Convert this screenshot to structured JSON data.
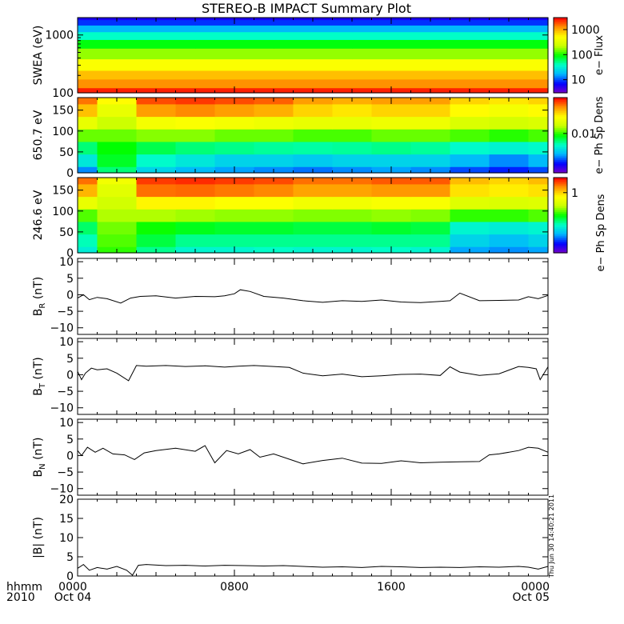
{
  "title": "STEREO-B IMPACT Summary Plot",
  "stamp": "Thu Jun 30 14:40:21 2011",
  "time_axis": {
    "prefix_line1": "hhmm",
    "prefix_line2": "2010",
    "ticks": [
      {
        "t": 0,
        "line1": "0000",
        "line2": "Oct 04"
      },
      {
        "t": 8,
        "line1": "0800",
        "line2": ""
      },
      {
        "t": 16,
        "line1": "1600",
        "line2": ""
      },
      {
        "t": 24,
        "line1": "0000",
        "line2": "Oct 05"
      }
    ]
  },
  "colors": {
    "spectrogram_scale": [
      "#7a00c8",
      "#0000ff",
      "#00b4ff",
      "#00ffc8",
      "#00ff00",
      "#c8ff00",
      "#ffff00",
      "#ff9600",
      "#ff0000"
    ],
    "line": "#000000",
    "axes": "#000000"
  },
  "chart_data": [
    {
      "type": "heatmap",
      "name": "swea",
      "ylabel": "SWEA (eV)",
      "yscale": "log",
      "ylim": [
        100,
        2000
      ],
      "ytick_labels": [
        "100",
        "1000"
      ],
      "ytick_values": [
        100,
        1000
      ],
      "colorbar_label": "e− Flux",
      "colorbar_scale": "log",
      "colorbar_ticks": [
        "10",
        "100",
        "1000"
      ],
      "colorbar_tick_values": [
        10,
        100,
        1000
      ],
      "colorbar_range": [
        3,
        3000
      ],
      "xlim": [
        0,
        24
      ],
      "x_hours": [
        0,
        4,
        8,
        12,
        16,
        20,
        24
      ],
      "y_values": [
        100,
        150,
        200,
        300,
        500,
        700,
        1000,
        1300,
        1700,
        2000
      ],
      "z_values": [
        [
          2500,
          2500,
          2500,
          2500,
          2500,
          2500,
          2500
        ],
        [
          1300,
          1300,
          1300,
          1300,
          1300,
          1300,
          1300
        ],
        [
          900,
          900,
          900,
          900,
          900,
          900,
          900
        ],
        [
          500,
          500,
          500,
          500,
          500,
          500,
          500
        ],
        [
          180,
          180,
          180,
          180,
          180,
          180,
          180
        ],
        [
          90,
          90,
          90,
          90,
          90,
          90,
          90
        ],
        [
          40,
          40,
          40,
          40,
          40,
          40,
          40
        ],
        [
          18,
          18,
          18,
          18,
          18,
          18,
          18
        ],
        [
          9,
          9,
          9,
          9,
          9,
          9,
          9
        ],
        [
          6,
          6,
          6,
          6,
          6,
          6,
          6
        ]
      ]
    },
    {
      "type": "heatmap",
      "name": "pad650",
      "ylabel": "650.7 eV",
      "yscale": "linear",
      "ylim": [
        0,
        180
      ],
      "ytick_labels": [
        "0",
        "50",
        "100",
        "150"
      ],
      "ytick_values": [
        0,
        50,
        100,
        150
      ],
      "colorbar_label": "e− Ph Sp Dens",
      "colorbar_scale": "log",
      "colorbar_ticks": [
        "0.01"
      ],
      "colorbar_tick_values": [
        0.01
      ],
      "colorbar_range": [
        0.003,
        0.03
      ],
      "xlim": [
        0,
        24
      ],
      "x_hours": [
        0,
        2,
        4,
        6,
        8,
        10,
        12,
        14,
        16,
        18,
        20,
        22,
        24
      ],
      "y_values": [
        0,
        30,
        60,
        90,
        120,
        150,
        180
      ],
      "z_values": [
        [
          0.005,
          0.008,
          0.006,
          0.0055,
          0.0052,
          0.005,
          0.0048,
          0.005,
          0.0052,
          0.005,
          0.0045,
          0.0042,
          0.0045
        ],
        [
          0.0065,
          0.009,
          0.007,
          0.0065,
          0.006,
          0.006,
          0.0058,
          0.006,
          0.006,
          0.006,
          0.0055,
          0.005,
          0.0055
        ],
        [
          0.008,
          0.0095,
          0.0085,
          0.008,
          0.0078,
          0.0076,
          0.0075,
          0.0076,
          0.0078,
          0.0076,
          0.007,
          0.0068,
          0.007
        ],
        [
          0.011,
          0.011,
          0.0115,
          0.0115,
          0.011,
          0.011,
          0.0105,
          0.0105,
          0.011,
          0.011,
          0.0105,
          0.01,
          0.0105
        ],
        [
          0.015,
          0.013,
          0.016,
          0.0165,
          0.016,
          0.0155,
          0.015,
          0.015,
          0.0155,
          0.0155,
          0.014,
          0.0135,
          0.014
        ],
        [
          0.02,
          0.015,
          0.022,
          0.023,
          0.022,
          0.021,
          0.019,
          0.018,
          0.019,
          0.019,
          0.017,
          0.016,
          0.017
        ],
        [
          0.024,
          0.017,
          0.026,
          0.027,
          0.026,
          0.025,
          0.022,
          0.021,
          0.022,
          0.022,
          0.019,
          0.018,
          0.019
        ]
      ]
    },
    {
      "type": "heatmap",
      "name": "pad246",
      "ylabel": "246.6 eV",
      "yscale": "linear",
      "ylim": [
        0,
        180
      ],
      "ytick_labels": [
        "0",
        "50",
        "100",
        "150"
      ],
      "ytick_values": [
        0,
        50,
        100,
        150
      ],
      "colorbar_label": "e− Ph Sp Dens",
      "colorbar_scale": "log",
      "colorbar_ticks": [
        "1"
      ],
      "colorbar_tick_values": [
        1
      ],
      "colorbar_range": [
        0.35,
        1.3
      ],
      "xlim": [
        0,
        24
      ],
      "x_hours": [
        0,
        2,
        4,
        6,
        8,
        10,
        12,
        14,
        16,
        18,
        20,
        22,
        24
      ],
      "y_values": [
        0,
        30,
        60,
        90,
        120,
        150,
        180
      ],
      "z_values": [
        [
          0.55,
          0.7,
          0.6,
          0.56,
          0.56,
          0.57,
          0.56,
          0.56,
          0.57,
          0.56,
          0.48,
          0.47,
          0.48
        ],
        [
          0.58,
          0.72,
          0.64,
          0.6,
          0.6,
          0.6,
          0.6,
          0.6,
          0.6,
          0.6,
          0.52,
          0.5,
          0.52
        ],
        [
          0.62,
          0.74,
          0.68,
          0.66,
          0.65,
          0.65,
          0.64,
          0.64,
          0.65,
          0.64,
          0.56,
          0.55,
          0.56
        ],
        [
          0.72,
          0.78,
          0.78,
          0.77,
          0.76,
          0.76,
          0.75,
          0.75,
          0.76,
          0.75,
          0.7,
          0.7,
          0.72
        ],
        [
          0.88,
          0.82,
          0.95,
          0.95,
          0.93,
          0.93,
          0.9,
          0.9,
          0.92,
          0.92,
          0.85,
          0.84,
          0.85
        ],
        [
          1.05,
          0.86,
          1.15,
          1.16,
          1.14,
          1.12,
          1.08,
          1.08,
          1.1,
          1.1,
          0.98,
          0.96,
          0.98
        ],
        [
          1.15,
          0.9,
          1.22,
          1.24,
          1.22,
          1.2,
          1.15,
          1.15,
          1.18,
          1.18,
          1.04,
          1.0,
          1.04
        ]
      ]
    },
    {
      "type": "line",
      "name": "br",
      "ylabel": "B",
      "ylabel_sub": "R",
      "yunit": " (nT)",
      "ylim": [
        -12,
        11
      ],
      "ytick_values": [
        -10,
        -5,
        0,
        5,
        10
      ],
      "ytick_labels": [
        "−10",
        "−5",
        "0",
        "5",
        "10"
      ],
      "xlim": [
        0,
        24
      ],
      "x": [
        0,
        0.3,
        0.6,
        1.0,
        1.5,
        2.2,
        2.7,
        3.2,
        4.0,
        5.0,
        6.0,
        7.0,
        7.5,
        8.0,
        8.3,
        8.8,
        9.5,
        10.5,
        11.5,
        12.5,
        13.5,
        14.5,
        15.5,
        16.5,
        17.5,
        18.5,
        19.0,
        19.5,
        20.5,
        21.5,
        22.5,
        23.0,
        23.5,
        24
      ],
      "y": [
        -1.0,
        0,
        -1.5,
        -0.8,
        -1.2,
        -2.5,
        -1.0,
        -0.5,
        -0.3,
        -1.0,
        -0.5,
        -0.6,
        -0.3,
        0.3,
        1.5,
        1.0,
        -0.5,
        -1.0,
        -1.8,
        -2.3,
        -1.8,
        -2.0,
        -1.6,
        -2.2,
        -2.4,
        -2.0,
        -1.8,
        0.5,
        -1.8,
        -1.7,
        -1.6,
        -0.6,
        -1.2,
        -0.2
      ]
    },
    {
      "type": "line",
      "name": "bt",
      "ylabel": "B",
      "ylabel_sub": "T",
      "yunit": " (nT)",
      "ylim": [
        -12,
        11
      ],
      "ytick_values": [
        -10,
        -5,
        0,
        5,
        10
      ],
      "ytick_labels": [
        "−10",
        "−5",
        "0",
        "5",
        "10"
      ],
      "xlim": [
        0,
        24
      ],
      "x": [
        0,
        0.2,
        0.4,
        0.7,
        1.0,
        1.5,
        2.0,
        2.6,
        3.0,
        3.5,
        4.5,
        5.5,
        6.5,
        7.5,
        8.2,
        9.0,
        10.0,
        10.8,
        11.5,
        12.5,
        13.5,
        14.5,
        15.5,
        16.5,
        17.5,
        18.5,
        19.0,
        19.5,
        20.5,
        21.5,
        22.5,
        23.0,
        23.4,
        23.6,
        24
      ],
      "y": [
        1.0,
        -1.5,
        0.5,
        2.0,
        1.5,
        1.8,
        0.5,
        -1.8,
        2.8,
        2.6,
        2.8,
        2.5,
        2.7,
        2.3,
        2.6,
        2.8,
        2.5,
        2.2,
        0.5,
        -0.3,
        0.2,
        -0.6,
        -0.3,
        0.1,
        0.2,
        -0.2,
        2.4,
        0.8,
        -0.2,
        0.3,
        2.5,
        2.2,
        1.8,
        -1.5,
        2.4
      ]
    },
    {
      "type": "line",
      "name": "bn",
      "ylabel": "B",
      "ylabel_sub": "N",
      "yunit": " (nT)",
      "ylim": [
        -12,
        11
      ],
      "ytick_values": [
        -10,
        -5,
        0,
        5,
        10
      ],
      "ytick_labels": [
        "−10",
        "−5",
        "0",
        "5",
        "10"
      ],
      "xlim": [
        0,
        24
      ],
      "x": [
        0,
        0.2,
        0.5,
        0.9,
        1.3,
        1.8,
        2.4,
        2.9,
        3.4,
        4.0,
        5.0,
        6.0,
        6.5,
        7.0,
        7.6,
        8.2,
        8.8,
        9.3,
        10.0,
        11.0,
        11.5,
        12.5,
        13.5,
        14.5,
        15.5,
        16.5,
        17.5,
        18.5,
        19.5,
        20.5,
        21.0,
        21.5,
        22.5,
        23.0,
        23.5,
        24
      ],
      "y": [
        1.5,
        0,
        2.5,
        1.0,
        2.2,
        0.5,
        0.2,
        -1.2,
        0.8,
        1.5,
        2.2,
        1.3,
        3.0,
        -2.2,
        1.5,
        0.5,
        1.8,
        -0.5,
        0.5,
        -1.5,
        -2.5,
        -1.5,
        -0.8,
        -2.3,
        -2.4,
        -1.6,
        -2.2,
        -2.0,
        -1.9,
        -1.8,
        0.2,
        0.5,
        1.5,
        2.5,
        2.2,
        1.0
      ]
    },
    {
      "type": "line",
      "name": "bmag",
      "ylabel": "|B| (nT)",
      "ylim": [
        0,
        20
      ],
      "ytick_values": [
        0,
        5,
        10,
        15,
        20
      ],
      "ytick_labels": [
        "0",
        "5",
        "10",
        "15",
        "20"
      ],
      "xlim": [
        0,
        24
      ],
      "x": [
        0,
        0.3,
        0.6,
        1.0,
        1.5,
        2.0,
        2.5,
        2.8,
        3.1,
        3.5,
        4.5,
        5.5,
        6.5,
        7.5,
        8.5,
        9.5,
        10.5,
        11.5,
        12.5,
        13.5,
        14.5,
        15.5,
        16.5,
        17.5,
        18.5,
        19.5,
        20.5,
        21.5,
        22.5,
        23.0,
        23.5,
        24
      ],
      "y": [
        2.0,
        3.0,
        1.5,
        2.2,
        1.8,
        2.5,
        1.5,
        0.2,
        2.8,
        3.0,
        2.7,
        2.8,
        2.6,
        2.8,
        2.7,
        2.6,
        2.7,
        2.5,
        2.3,
        2.4,
        2.2,
        2.5,
        2.4,
        2.2,
        2.3,
        2.2,
        2.4,
        2.3,
        2.5,
        2.3,
        1.8,
        2.5
      ]
    }
  ]
}
